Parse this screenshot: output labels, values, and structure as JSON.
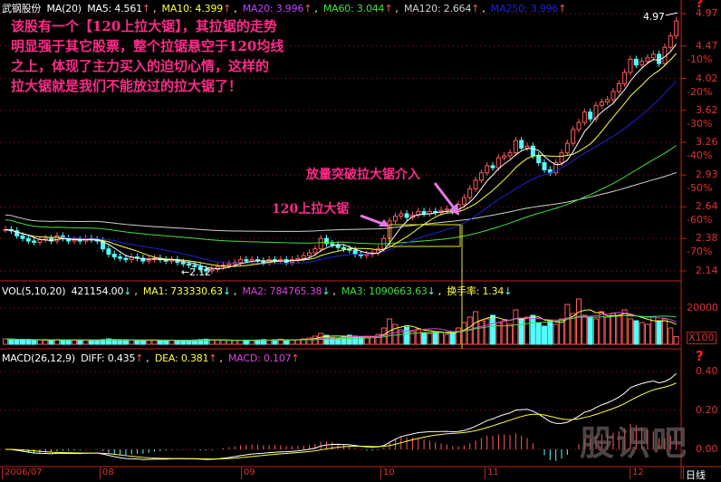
{
  "header": {
    "stock": "武钢股份",
    "ma_mode": "MA(20)",
    "ma5": "MA5: 4.561",
    "ma10": "MA10: 4.399",
    "ma20": "MA20: 3.996",
    "ma60": "MA60: 3.044",
    "ma120": "MA120: 2.664",
    "ma250": "MA250: 3.996",
    "arrow_up": "↑",
    "arrow_down": "↓",
    "sep": ","
  },
  "note_lines": [
    "该股有一个【120上拉大锯】，其拉锯的走势",
    "明显强于其它股票，整个拉锯悬空于120均线",
    "之上，体现了主力买入的迫切心情，这样的",
    "拉大锯就是我们不能放过的拉大锯了！"
  ],
  "annotations": {
    "saw": "120上拉大锯",
    "breakout": "放量突破拉大锯介入",
    "low_label": "←2.12",
    "high_label": "4.97"
  },
  "price_axis": {
    "labels": [
      "4.97",
      "4.47",
      "4.02",
      "3.62",
      "3.26",
      "2.93",
      "2.64",
      "2.38",
      "2.14"
    ],
    "values": [
      4.97,
      4.47,
      4.02,
      3.62,
      3.26,
      2.93,
      2.64,
      2.38,
      2.14
    ],
    "pct": [
      "-10%",
      "-20%",
      "-30%",
      "-40%",
      "-50%",
      "-60%",
      "-70%"
    ],
    "pct_values": [
      4.47,
      4.02,
      3.62,
      3.26,
      2.93,
      2.64,
      2.38
    ],
    "scale": "log",
    "help": "?"
  },
  "vol_header": {
    "label": "VOL(5,10,20)",
    "value": "421154.00",
    "ma1": "MA1: 733330.63",
    "ma2": "MA2: 784765.38",
    "ma3": "MA3: 1090663.63",
    "turnover": "换手率: 1.34"
  },
  "vol_axis": {
    "label": "20000",
    "value": 20000,
    "unit": "X100"
  },
  "macd_header": {
    "label": "MACD(26,12,9)",
    "diff": "DIFF: 0.435",
    "dea": "DEA: 0.381",
    "macd": "MACD: 0.107"
  },
  "macd_axis": {
    "labels": [
      "0.40",
      "0.20",
      "0.00"
    ],
    "values": [
      0.4,
      0.2,
      0.0
    ]
  },
  "dates": [
    "2006/07",
    "08",
    "09",
    "10",
    "11",
    "12"
  ],
  "period": "日线",
  "watermark": "股识吧",
  "colors": {
    "up": "#ff5a5a",
    "down": "#54fcfc",
    "ma5": "#ffffff",
    "ma10": "#ffff40",
    "ma20": "#2020d8",
    "ma60": "#40e040",
    "ma120": "#d0d0d0",
    "annotation": "#ff2a8a",
    "box": "#e8e820",
    "grid": "#a01818"
  },
  "chart_data": {
    "type": "candlestick",
    "close": [
      2.45,
      2.44,
      2.4,
      2.38,
      2.36,
      2.35,
      2.37,
      2.38,
      2.36,
      2.4,
      2.38,
      2.36,
      2.37,
      2.36,
      2.38,
      2.37,
      2.36,
      2.3,
      2.26,
      2.24,
      2.23,
      2.22,
      2.24,
      2.23,
      2.21,
      2.22,
      2.23,
      2.22,
      2.21,
      2.22,
      2.2,
      2.19,
      2.18,
      2.17,
      2.15,
      2.14,
      2.15,
      2.17,
      2.18,
      2.19,
      2.2,
      2.22,
      2.21,
      2.22,
      2.21,
      2.2,
      2.22,
      2.21,
      2.22,
      2.2,
      2.22,
      2.23,
      2.25,
      2.27,
      2.3,
      2.38,
      2.34,
      2.33,
      2.31,
      2.3,
      2.29,
      2.26,
      2.25,
      2.26,
      2.27,
      2.3,
      2.38,
      2.52,
      2.56,
      2.58,
      2.55,
      2.57,
      2.6,
      2.58,
      2.6,
      2.59,
      2.61,
      2.62,
      2.6,
      2.66,
      2.72,
      2.8,
      2.88,
      2.95,
      3.02,
      3.0,
      3.1,
      3.12,
      3.15,
      3.28,
      3.2,
      3.22,
      3.12,
      3.05,
      2.98,
      2.95,
      3.05,
      3.15,
      3.25,
      3.4,
      3.48,
      3.6,
      3.52,
      3.68,
      3.72,
      3.75,
      3.85,
      3.95,
      4.1,
      4.28,
      4.2,
      4.25,
      4.3,
      4.35,
      4.22,
      4.45,
      4.62,
      4.85
    ],
    "volume": [
      3000,
      2800,
      2500,
      2600,
      2400,
      2200,
      2500,
      2300,
      2400,
      2600,
      2500,
      2300,
      2200,
      2400,
      2300,
      2500,
      2400,
      2600,
      3000,
      2500,
      2400,
      2200,
      2300,
      2100,
      2000,
      2200,
      2400,
      2100,
      2000,
      2300,
      2200,
      2000,
      2100,
      2400,
      2600,
      2800,
      2500,
      2300,
      2200,
      2100,
      2000,
      2200,
      2300,
      2100,
      2400,
      2600,
      2200,
      2500,
      2800,
      2300,
      2400,
      2600,
      3000,
      3500,
      4500,
      6000,
      5000,
      3800,
      3500,
      4200,
      5000,
      4500,
      4000,
      3800,
      4200,
      5500,
      9000,
      14000,
      11000,
      8000,
      9500,
      7000,
      8500,
      6500,
      6000,
      7000,
      6500,
      5500,
      6000,
      9000,
      12000,
      15000,
      18000,
      13000,
      14000,
      16000,
      12000,
      13000,
      11000,
      19000,
      14000,
      15000,
      16000,
      12000,
      10000,
      13000,
      11000,
      14000,
      22000,
      17000,
      25000,
      16000,
      15000,
      14000,
      18000,
      15000,
      17000,
      16000,
      19000,
      14000,
      13000,
      12000,
      11000,
      15000,
      13000,
      14000,
      9000,
      4212
    ],
    "price_range": [
      2.14,
      4.97
    ],
    "volume_range": [
      0,
      25000
    ],
    "macd_range": [
      -0.05,
      0.45
    ]
  }
}
